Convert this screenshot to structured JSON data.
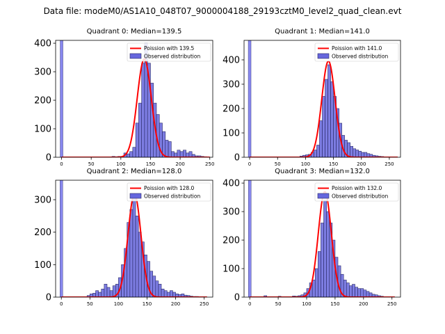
{
  "figure": {
    "title": "Data file: modeM0/AS1A10_048T07_9000004188_29193cztM0_level2_quad_clean.evt"
  },
  "colors": {
    "bars": "#6666dd",
    "bar_edge": "#2a2a66",
    "fit": "#ff0000",
    "spike": "#8888ee"
  },
  "chart_data": [
    {
      "type": "bar",
      "title": "Quadrant 0: Median=139.5",
      "xlim": [
        -10,
        255
      ],
      "ylim": [
        0,
        410
      ],
      "xticks": [
        0,
        50,
        100,
        150,
        200,
        250
      ],
      "yticks": [
        0,
        100,
        200,
        300,
        400
      ],
      "bin_width": 5,
      "spike": {
        "x": 0,
        "value": 410
      },
      "bins": [
        [
          85,
          3
        ],
        [
          90,
          2
        ],
        [
          95,
          3
        ],
        [
          100,
          3
        ],
        [
          105,
          15
        ],
        [
          110,
          12
        ],
        [
          115,
          20
        ],
        [
          120,
          35
        ],
        [
          125,
          120
        ],
        [
          130,
          190
        ],
        [
          135,
          330
        ],
        [
          140,
          400
        ],
        [
          145,
          330
        ],
        [
          150,
          260
        ],
        [
          155,
          190
        ],
        [
          160,
          150
        ],
        [
          165,
          120
        ],
        [
          170,
          90
        ],
        [
          175,
          60
        ],
        [
          180,
          55
        ],
        [
          185,
          20
        ],
        [
          190,
          15
        ],
        [
          195,
          25
        ],
        [
          200,
          20
        ],
        [
          205,
          25
        ],
        [
          210,
          15
        ],
        [
          215,
          20
        ],
        [
          220,
          10
        ],
        [
          225,
          5
        ],
        [
          230,
          5
        ],
        [
          235,
          3
        ],
        [
          240,
          2
        ]
      ],
      "fit": {
        "mu": 139.5,
        "peak": 345,
        "x_start": 0,
        "x_end": 250
      },
      "legend": [
        "Poission with 139.5",
        "Observed distribution"
      ]
    },
    {
      "type": "bar",
      "title": "Quadrant 1: Median=141.0",
      "xlim": [
        -10,
        270
      ],
      "ylim": [
        0,
        480
      ],
      "xticks": [
        0,
        50,
        100,
        150,
        200,
        250
      ],
      "yticks": [
        0,
        100,
        200,
        300,
        400
      ],
      "bin_width": 5,
      "spike": {
        "x": 0,
        "value": 480
      },
      "bins": [
        [
          90,
          5
        ],
        [
          95,
          8
        ],
        [
          100,
          10
        ],
        [
          105,
          12
        ],
        [
          110,
          20
        ],
        [
          115,
          30
        ],
        [
          120,
          50
        ],
        [
          125,
          150
        ],
        [
          130,
          250
        ],
        [
          135,
          320
        ],
        [
          140,
          380
        ],
        [
          145,
          310
        ],
        [
          150,
          250
        ],
        [
          155,
          200
        ],
        [
          160,
          140
        ],
        [
          165,
          90
        ],
        [
          170,
          70
        ],
        [
          175,
          60
        ],
        [
          180,
          45
        ],
        [
          185,
          35
        ],
        [
          190,
          30
        ],
        [
          195,
          25
        ],
        [
          200,
          20
        ],
        [
          205,
          20
        ],
        [
          210,
          15
        ],
        [
          215,
          12
        ],
        [
          220,
          8
        ],
        [
          225,
          6
        ],
        [
          230,
          4
        ],
        [
          235,
          3
        ]
      ],
      "fit": {
        "mu": 141.0,
        "peak": 395,
        "x_start": 0,
        "x_end": 265
      },
      "legend": [
        "Poission with 141.0",
        "Observed distribution"
      ]
    },
    {
      "type": "bar",
      "title": "Quadrant 2: Median=128.0",
      "xlim": [
        -10,
        265
      ],
      "ylim": [
        0,
        360
      ],
      "xticks": [
        0,
        50,
        100,
        150,
        200,
        250
      ],
      "yticks": [
        0,
        100,
        200,
        300
      ],
      "bin_width": 5,
      "spike": {
        "x": 0,
        "value": 360
      },
      "bins": [
        [
          45,
          5
        ],
        [
          50,
          10
        ],
        [
          55,
          12
        ],
        [
          60,
          20
        ],
        [
          65,
          15
        ],
        [
          70,
          25
        ],
        [
          75,
          40
        ],
        [
          80,
          30
        ],
        [
          85,
          20
        ],
        [
          90,
          35
        ],
        [
          95,
          40
        ],
        [
          100,
          60
        ],
        [
          105,
          100
        ],
        [
          110,
          150
        ],
        [
          115,
          230
        ],
        [
          120,
          270
        ],
        [
          125,
          310
        ],
        [
          130,
          250
        ],
        [
          135,
          200
        ],
        [
          140,
          170
        ],
        [
          145,
          130
        ],
        [
          150,
          110
        ],
        [
          155,
          80
        ],
        [
          160,
          65
        ],
        [
          165,
          50
        ],
        [
          170,
          40
        ],
        [
          175,
          25
        ],
        [
          180,
          20
        ],
        [
          185,
          15
        ],
        [
          190,
          20
        ],
        [
          195,
          15
        ],
        [
          200,
          10
        ],
        [
          205,
          8
        ],
        [
          210,
          10
        ],
        [
          215,
          6
        ],
        [
          220,
          5
        ],
        [
          225,
          3
        ],
        [
          230,
          2
        ],
        [
          235,
          2
        ]
      ],
      "fit": {
        "mu": 128.0,
        "peak": 318,
        "x_start": 0,
        "x_end": 255
      },
      "legend": [
        "Poission with 128.0",
        "Observed distribution"
      ]
    },
    {
      "type": "bar",
      "title": "Quadrant 3: Median=132.0",
      "xlim": [
        -10,
        265
      ],
      "ylim": [
        0,
        410
      ],
      "xticks": [
        0,
        50,
        100,
        150,
        200,
        250
      ],
      "yticks": [
        0,
        100,
        200,
        300,
        400
      ],
      "bin_width": 5,
      "spike": {
        "x": 0,
        "value": 410
      },
      "bins": [
        [
          25,
          5
        ],
        [
          50,
          3
        ],
        [
          75,
          4
        ],
        [
          80,
          3
        ],
        [
          85,
          5
        ],
        [
          90,
          8
        ],
        [
          95,
          15
        ],
        [
          100,
          30
        ],
        [
          105,
          50
        ],
        [
          110,
          60
        ],
        [
          115,
          100
        ],
        [
          120,
          160
        ],
        [
          125,
          260
        ],
        [
          130,
          340
        ],
        [
          135,
          300
        ],
        [
          140,
          260
        ],
        [
          145,
          200
        ],
        [
          150,
          140
        ],
        [
          155,
          110
        ],
        [
          160,
          80
        ],
        [
          165,
          60
        ],
        [
          170,
          50
        ],
        [
          175,
          40
        ],
        [
          180,
          45
        ],
        [
          185,
          35
        ],
        [
          190,
          30
        ],
        [
          195,
          30
        ],
        [
          200,
          25
        ],
        [
          205,
          20
        ],
        [
          210,
          15
        ],
        [
          215,
          10
        ],
        [
          220,
          8
        ],
        [
          225,
          5
        ],
        [
          230,
          3
        ]
      ],
      "fit": {
        "mu": 132.0,
        "peak": 370,
        "x_start": 0,
        "x_end": 255
      },
      "legend": [
        "Poission with 132.0",
        "Observed distribution"
      ]
    }
  ]
}
